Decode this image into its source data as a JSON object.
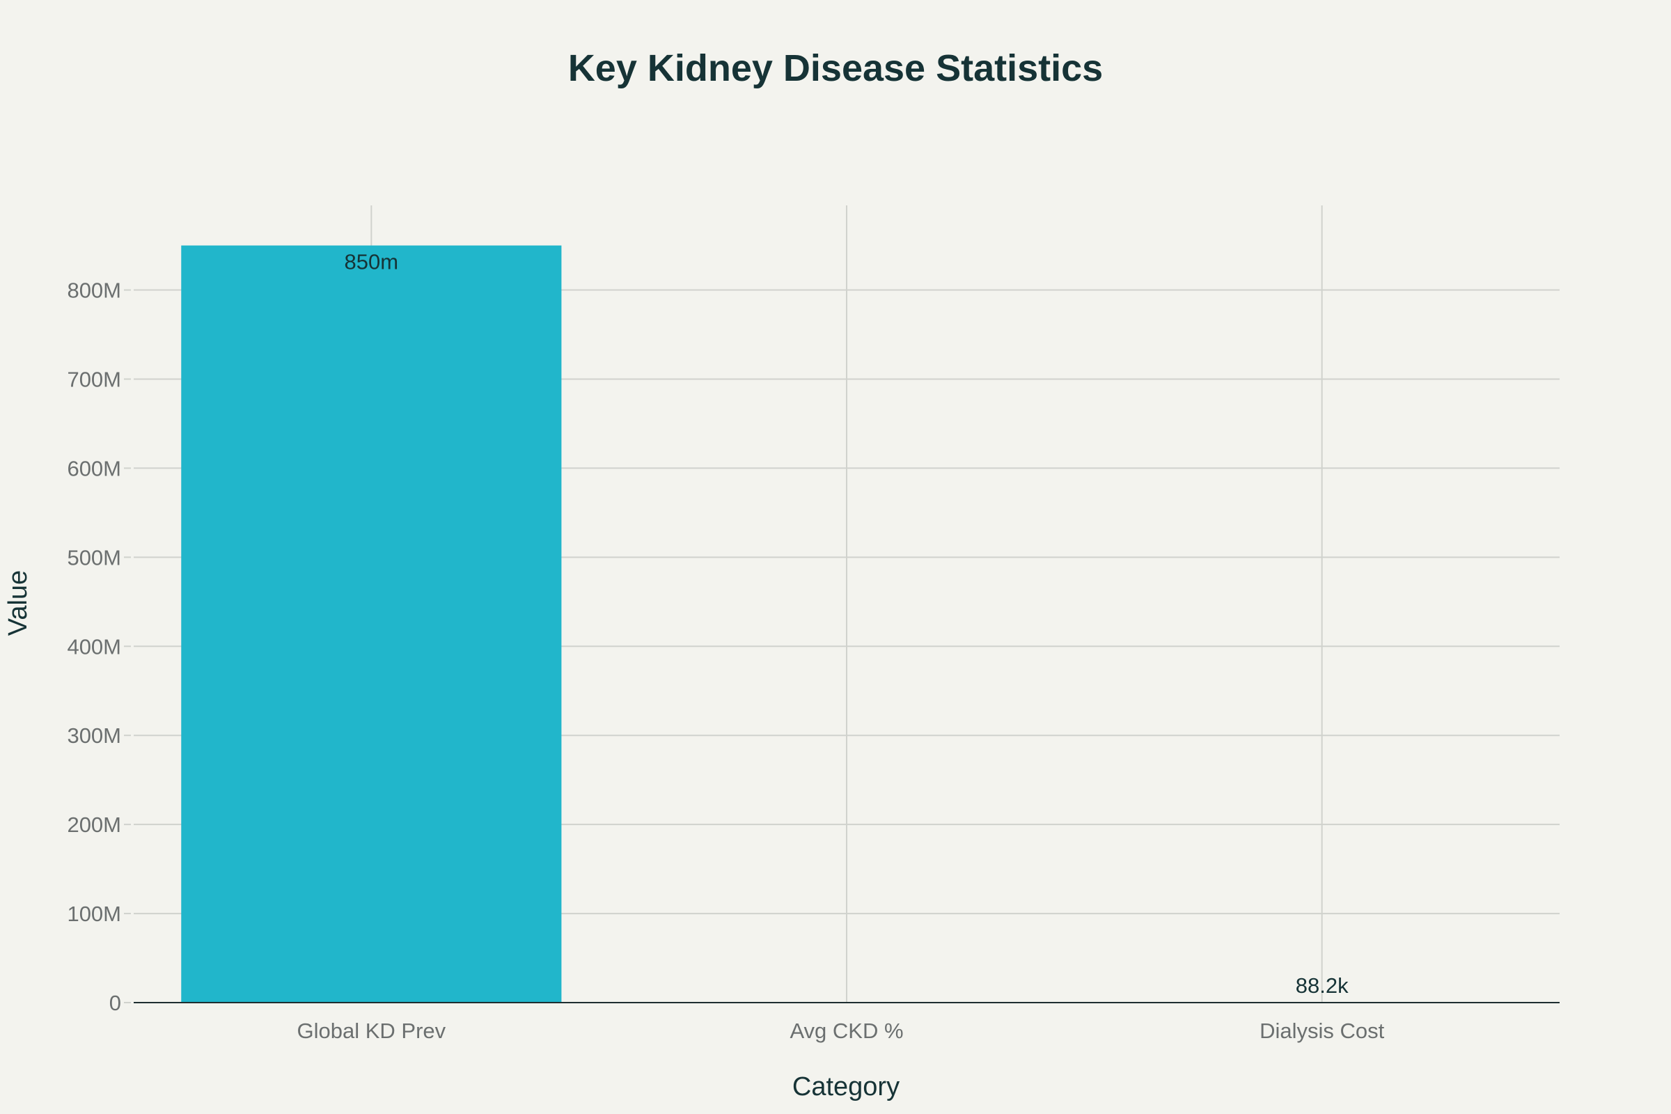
{
  "chart_data": {
    "type": "bar",
    "title": "Key Kidney Disease Statistics",
    "xlabel": "Category",
    "ylabel": "Value",
    "categories": [
      "Global KD Prev",
      "Avg CKD %",
      "Dialysis Cost"
    ],
    "values": [
      850000000,
      10,
      88200
    ],
    "data_labels": [
      "850m",
      "",
      "88.2k"
    ],
    "ylim": [
      0,
      895000000
    ],
    "yticks": [
      0,
      100000000,
      200000000,
      300000000,
      400000000,
      500000000,
      600000000,
      700000000,
      800000000
    ],
    "ytick_labels": [
      "0",
      "100M",
      "200M",
      "300M",
      "400M",
      "500M",
      "600M",
      "700M",
      "800M"
    ],
    "grid": true,
    "legend": "none",
    "bar_color": "#21b6cb"
  }
}
